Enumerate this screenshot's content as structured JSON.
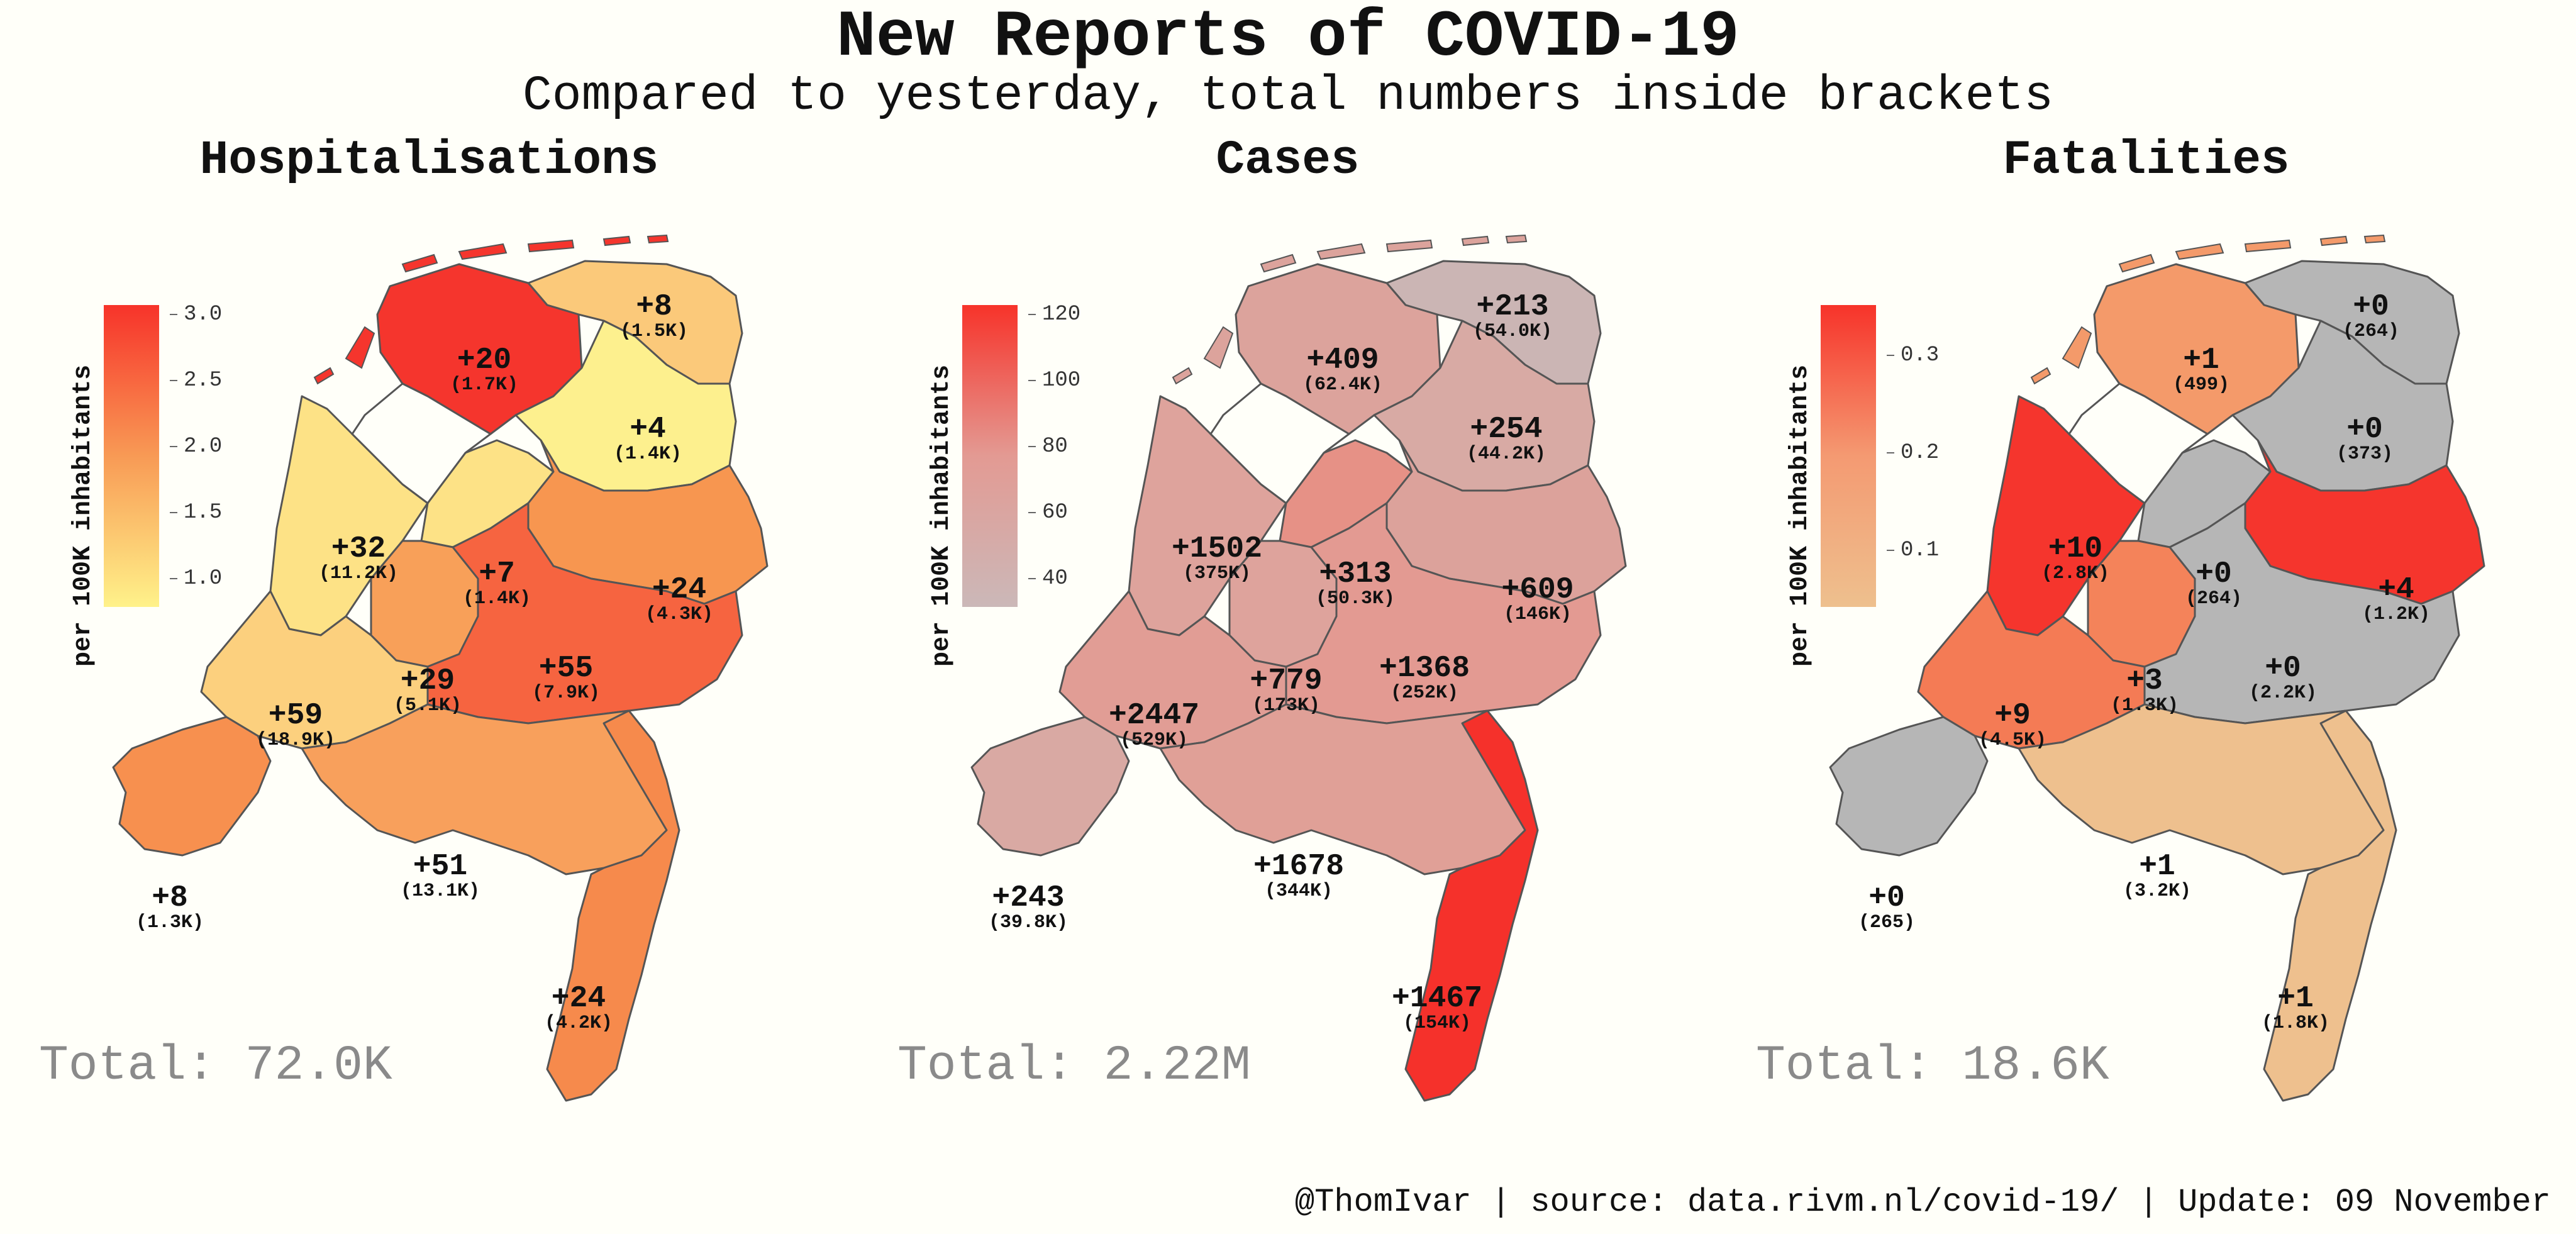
{
  "title": "New Reports of COVID-19",
  "subtitle": "Compared to yesterday, total numbers inside brackets",
  "footer": "@ThomIvar | source: data.rivm.nl/covid-19/ | Update: 09 November",
  "legend_title": "per 100K inhabitants",
  "map_data": {
    "type": "choropleth",
    "region": "Netherlands provinces",
    "panels": [
      {
        "title": "Hospitalisations",
        "total_label": "Total: 72.0K",
        "colors": {
          "low": "#fff28a",
          "mid": "#f89a55",
          "high": "#f7332a"
        },
        "legend_ticks": [
          "3.0",
          "2.5",
          "2.0",
          "1.5",
          "1.0"
        ],
        "regions": [
          {
            "name": "Groningen",
            "delta": "+8",
            "total": "(1.5K)",
            "color": "#fbc97a"
          },
          {
            "name": "Friesland",
            "delta": "+20",
            "total": "(1.7K)",
            "color": "#f5352d"
          },
          {
            "name": "Drenthe",
            "delta": "+4",
            "total": "(1.4K)",
            "color": "#fdf08e"
          },
          {
            "name": "Noord-Holland",
            "delta": "+32",
            "total": "(11.2K)",
            "color": "#fde286"
          },
          {
            "name": "Flevoland",
            "delta": "+7",
            "total": "(1.4K)",
            "color": "#fde286"
          },
          {
            "name": "Overijssel",
            "delta": "+24",
            "total": "(4.3K)",
            "color": "#f79650"
          },
          {
            "name": "Utrecht",
            "delta": "+29",
            "total": "(5.1K)",
            "color": "#f8a059"
          },
          {
            "name": "Gelderland",
            "delta": "+55",
            "total": "(7.9K)",
            "color": "#f66440"
          },
          {
            "name": "Zuid-Holland",
            "delta": "+59",
            "total": "(18.9K)",
            "color": "#fcd07e"
          },
          {
            "name": "Noord-Brabant",
            "delta": "+51",
            "total": "(13.1K)",
            "color": "#f8a05c"
          },
          {
            "name": "Zeeland",
            "delta": "+8",
            "total": "(1.3K)",
            "color": "#f7904f"
          },
          {
            "name": "Limburg",
            "delta": "+24",
            "total": "(4.2K)",
            "color": "#f68a4c"
          }
        ]
      },
      {
        "title": "Cases",
        "total_label": "Total: 2.22M",
        "colors": {
          "low": "#cbb8b8",
          "mid": "#e39a93",
          "high": "#f7332a"
        },
        "legend_ticks": [
          "120",
          "100",
          "80",
          "60",
          "40"
        ],
        "regions": [
          {
            "name": "Groningen",
            "delta": "+213",
            "total": "(54.0K)",
            "color": "#cbb5b4"
          },
          {
            "name": "Friesland",
            "delta": "+409",
            "total": "(62.4K)",
            "color": "#dca39c"
          },
          {
            "name": "Drenthe",
            "delta": "+254",
            "total": "(44.2K)",
            "color": "#d8aaa4"
          },
          {
            "name": "Noord-Holland",
            "delta": "+1502",
            "total": "(375K)",
            "color": "#dea39c"
          },
          {
            "name": "Flevoland",
            "delta": "+313",
            "total": "(50.3K)",
            "color": "#e69186"
          },
          {
            "name": "Overijssel",
            "delta": "+609",
            "total": "(146K)",
            "color": "#dca29b"
          },
          {
            "name": "Utrecht",
            "delta": "+779",
            "total": "(173K)",
            "color": "#dea39c"
          },
          {
            "name": "Gelderland",
            "delta": "+1368",
            "total": "(252K)",
            "color": "#e39a92"
          },
          {
            "name": "Zuid-Holland",
            "delta": "+2447",
            "total": "(529K)",
            "color": "#e19d95"
          },
          {
            "name": "Noord-Brabant",
            "delta": "+1678",
            "total": "(344K)",
            "color": "#e0a097"
          },
          {
            "name": "Zeeland",
            "delta": "+243",
            "total": "(39.8K)",
            "color": "#d9a9a3"
          },
          {
            "name": "Limburg",
            "delta": "+1467",
            "total": "(154K)",
            "color": "#f5312b"
          }
        ]
      },
      {
        "title": "Fatalities",
        "total_label": "Total: 18.6K",
        "colors": {
          "low": "#eec08e",
          "mid": "#f49a72",
          "high": "#f7332a"
        },
        "legend_ticks": [
          "0.3",
          "0.2",
          "0.1"
        ],
        "regions": [
          {
            "name": "Groningen",
            "delta": "+0",
            "total": "(264)",
            "color": "#b6b6b6"
          },
          {
            "name": "Friesland",
            "delta": "+1",
            "total": "(499)",
            "color": "#f49a6a"
          },
          {
            "name": "Drenthe",
            "delta": "+0",
            "total": "(373)",
            "color": "#b6b6b6"
          },
          {
            "name": "Noord-Holland",
            "delta": "+10",
            "total": "(2.8K)",
            "color": "#f5352d"
          },
          {
            "name": "Flevoland",
            "delta": "+0",
            "total": "(264)",
            "color": "#b6b6b6"
          },
          {
            "name": "Overijssel",
            "delta": "+4",
            "total": "(1.2K)",
            "color": "#f5352d"
          },
          {
            "name": "Utrecht",
            "delta": "+3",
            "total": "(1.3K)",
            "color": "#f4835a"
          },
          {
            "name": "Gelderland",
            "delta": "+0",
            "total": "(2.2K)",
            "color": "#b6b6b6"
          },
          {
            "name": "Zuid-Holland",
            "delta": "+9",
            "total": "(4.5K)",
            "color": "#f47b55"
          },
          {
            "name": "Noord-Brabant",
            "delta": "+1",
            "total": "(3.2K)",
            "color": "#eec08e"
          },
          {
            "name": "Zeeland",
            "delta": "+0",
            "total": "(265)",
            "color": "#b6b6b6"
          },
          {
            "name": "Limburg",
            "delta": "+1",
            "total": "(1.8K)",
            "color": "#eec08e"
          }
        ]
      }
    ]
  }
}
